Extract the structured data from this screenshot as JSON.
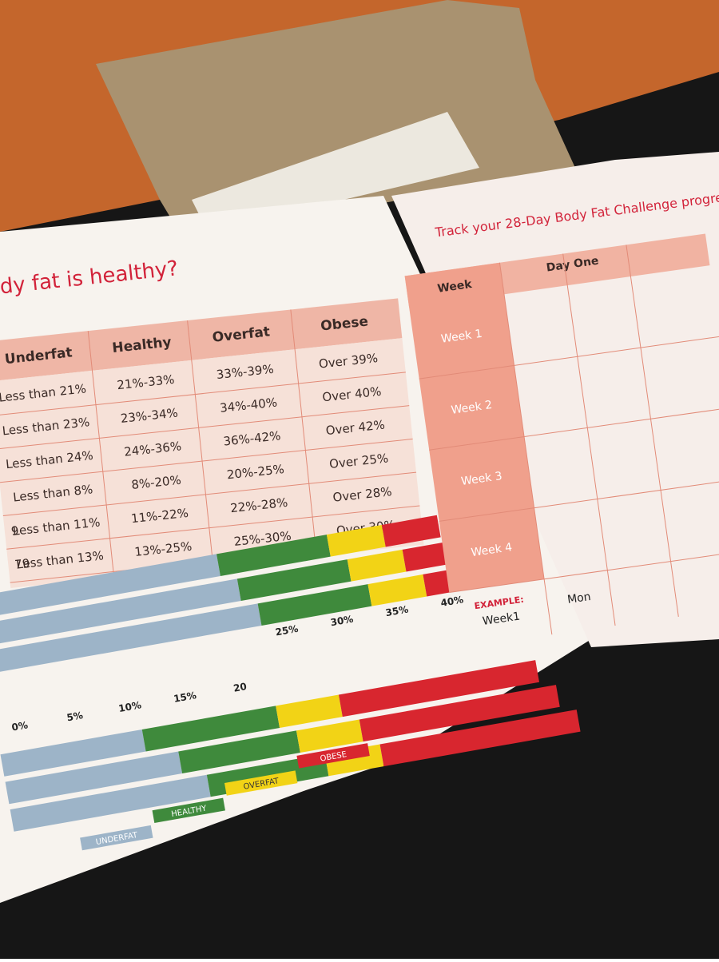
{
  "left_panel": {
    "title": "dy fat is healthy?",
    "table": {
      "headers": [
        "Underfat",
        "Healthy",
        "Overfat",
        "Obese"
      ],
      "rows": [
        [
          "Less than 21%",
          "21%-33%",
          "33%-39%",
          "Over 39%"
        ],
        [
          "Less than 23%",
          "23%-34%",
          "34%-40%",
          "Over 40%"
        ],
        [
          "Less than 24%",
          "24%-36%",
          "36%-42%",
          "Over 42%"
        ],
        [
          "Less than 8%",
          "8%-20%",
          "20%-25%",
          "Over 25%"
        ],
        [
          "Less than 11%",
          "11%-22%",
          "22%-28%",
          "Over 28%"
        ],
        [
          "Less than 13%",
          "13%-25%",
          "25%-30%",
          "Over 30%"
        ]
      ],
      "row_fragments": [
        "9",
        "79"
      ]
    },
    "scale_labels": [
      "0%",
      "5%",
      "10%",
      "15%",
      "20",
      "25%",
      "30%",
      "35%",
      "40%"
    ],
    "legend": [
      "UNDERFAT",
      "HEALTHY",
      "OVERFAT",
      "OBESE"
    ]
  },
  "right_panel": {
    "title": "Track your 28-Day Body Fat Challenge progress",
    "headers": [
      "Week",
      "Day One"
    ],
    "weeks": [
      "Week 1",
      "Week 2",
      "Week 3",
      "Week 4"
    ],
    "example": {
      "label": "EXAMPLE:",
      "week": "Week1",
      "day": "Mon"
    }
  }
}
